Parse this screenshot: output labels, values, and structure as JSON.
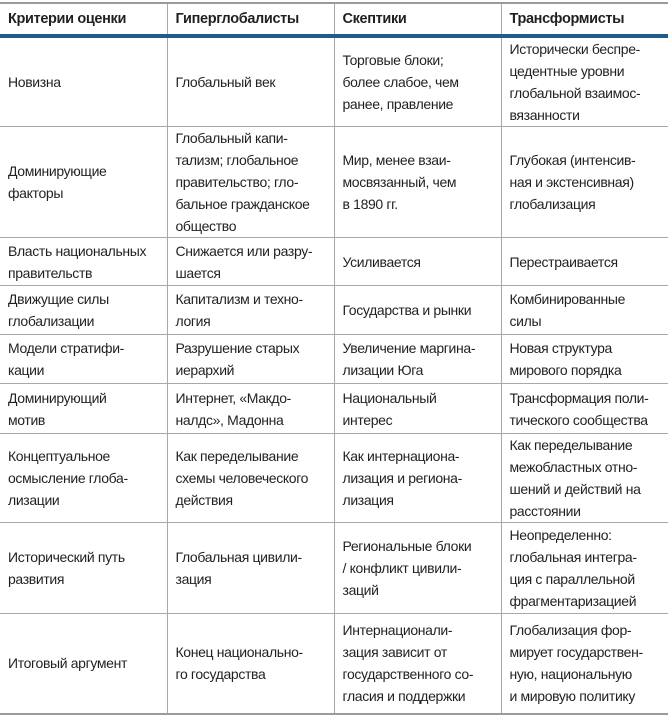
{
  "table": {
    "headers": [
      "Критерии оценки",
      "Гиперглобалисты",
      "Скептики",
      "Трансформисты"
    ],
    "rows": [
      [
        "Новизна",
        "Глобальный век",
        "Торговые блоки;\nболее слабое, чем\nранее, правление",
        "Исторически беспре-\nцедентные уровни\nглобальной взаимос-\nвязанности"
      ],
      [
        "Доминирующие\nфакторы",
        "Глобальный капи-\nтализм; глобальное\nправительство; гло-\nбальное гражданское\nобщество",
        "Мир, менее взаи-\nмосвязанный, чем\nв 1890 гг.",
        "Глубокая (интенсив-\nная и экстенсивная)\nглобализация"
      ],
      [
        "Власть национальных\nправительств",
        "Снижается или разру-\nшается",
        "Усиливается",
        "Перестраивается"
      ],
      [
        "Движущие силы\nглобализации",
        "Капитализм и техно-\nлогия",
        "Государства и рынки",
        "Комбинированные\nсилы"
      ],
      [
        "Модели стратифи-\nкации",
        "Разрушение старых\nиерархий",
        "Увеличение маргина-\nлизации Юга",
        "Новая структура\nмирового порядка"
      ],
      [
        "Доминирующий\nмотив",
        "Интернет, «Макдо-\nналдс», Мадонна",
        "Национальный\nинтерес",
        "Трансформация поли-\nтического сообщества"
      ],
      [
        "Концептуальное\nосмысление глоба-\nлизации",
        "Как переделывание\nсхемы человеческого\nдействия",
        "Как интернациона-\nлизация и регионa-\nлизация",
        "Как переделывание\nмежобластных отно-\nшений и действий на\nрасстоянии"
      ],
      [
        "Исторический путь\nразвития",
        "Глобальная цивили-\nзация",
        "Региональные блоки\n/ конфликт цивили-\nзаций",
        "Неопределенно:\nглобальная интегра-\nция с параллельной\nфрагментаризацией"
      ],
      [
        "Итоговый аргумент",
        "Конец национально-\nго государства",
        "Интернационали-\nзация зависит от\nгосударственного со-\nгласия и поддержки",
        "Глобализация фор-\nмирует государствен-\nную, национальную\nи мировую политику"
      ]
    ]
  },
  "colors": {
    "header_rule": "#1f5b8c",
    "grid": "#a8a8a8"
  }
}
